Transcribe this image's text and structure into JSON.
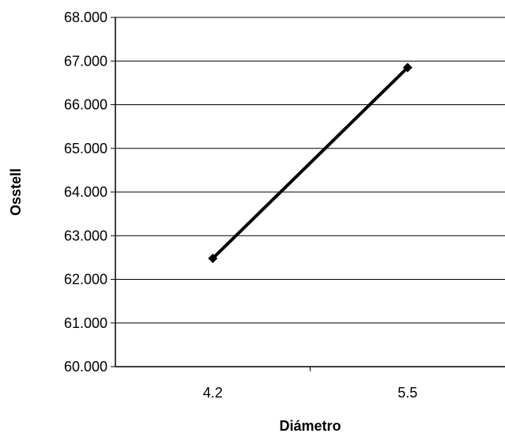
{
  "chart_data": {
    "type": "line",
    "categories": [
      "4.2",
      "5.5"
    ],
    "series": [
      {
        "values": [
          62.48,
          66.85
        ],
        "color": "#000000",
        "marker": "diamond"
      }
    ],
    "xlabel": "Diámetro",
    "ylabel": "Osstell",
    "ylim": [
      60,
      68
    ],
    "yticks": [
      "60.000",
      "61.000",
      "62.000",
      "63.000",
      "64.000",
      "65.000",
      "66.000",
      "67.000",
      "68.000"
    ],
    "grid": true
  }
}
